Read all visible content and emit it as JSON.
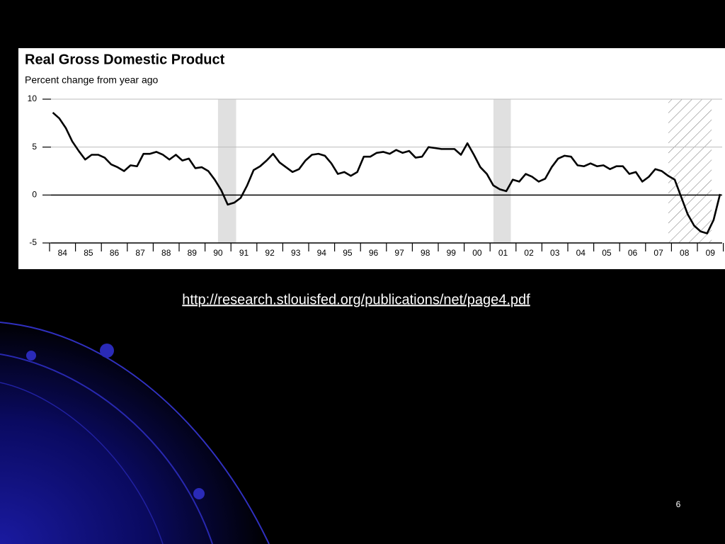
{
  "chart_data": {
    "type": "line",
    "title": "Real Gross Domestic Product",
    "subtitle": "Percent change from year ago",
    "xlim": [
      1984,
      2010
    ],
    "ylim": [
      -5,
      10
    ],
    "yticks": [
      10,
      5,
      0,
      -5
    ],
    "xticks": [
      {
        "value": 1984.5,
        "label": "84"
      },
      {
        "value": 1985.5,
        "label": "85"
      },
      {
        "value": 1986.5,
        "label": "86"
      },
      {
        "value": 1987.5,
        "label": "87"
      },
      {
        "value": 1988.5,
        "label": "88"
      },
      {
        "value": 1989.5,
        "label": "89"
      },
      {
        "value": 1990.5,
        "label": "90"
      },
      {
        "value": 1991.5,
        "label": "91"
      },
      {
        "value": 1992.5,
        "label": "92"
      },
      {
        "value": 1993.5,
        "label": "93"
      },
      {
        "value": 1994.5,
        "label": "94"
      },
      {
        "value": 1995.5,
        "label": "95"
      },
      {
        "value": 1996.5,
        "label": "96"
      },
      {
        "value": 1997.5,
        "label": "97"
      },
      {
        "value": 1998.5,
        "label": "98"
      },
      {
        "value": 1999.5,
        "label": "99"
      },
      {
        "value": 2000.5,
        "label": "00"
      },
      {
        "value": 2001.5,
        "label": "01"
      },
      {
        "value": 2002.5,
        "label": "02"
      },
      {
        "value": 2003.5,
        "label": "03"
      },
      {
        "value": 2004.5,
        "label": "04"
      },
      {
        "value": 2005.5,
        "label": "05"
      },
      {
        "value": 2006.5,
        "label": "06"
      },
      {
        "value": 2007.5,
        "label": "07"
      },
      {
        "value": 2008.5,
        "label": "08"
      },
      {
        "value": 2009.5,
        "label": "09"
      }
    ],
    "grid": true,
    "recessions": [
      {
        "start": 1990.5,
        "end": 1991.2,
        "style": "shaded"
      },
      {
        "start": 2001.13,
        "end": 2001.8,
        "style": "shaded"
      },
      {
        "start": 2007.88,
        "end": 2009.55,
        "style": "hatched"
      }
    ],
    "series": [
      {
        "color": "#000000",
        "x": [
          1984.125,
          1984.375,
          1984.625,
          1984.875,
          1985.125,
          1985.375,
          1985.625,
          1985.875,
          1986.125,
          1986.375,
          1986.625,
          1986.875,
          1987.125,
          1987.375,
          1987.625,
          1987.875,
          1988.125,
          1988.375,
          1988.625,
          1988.875,
          1989.125,
          1989.375,
          1989.625,
          1989.875,
          1990.125,
          1990.375,
          1990.625,
          1990.875,
          1991.125,
          1991.375,
          1991.625,
          1991.875,
          1992.125,
          1992.375,
          1992.625,
          1992.875,
          1993.125,
          1993.375,
          1993.625,
          1993.875,
          1994.125,
          1994.375,
          1994.625,
          1994.875,
          1995.125,
          1995.375,
          1995.625,
          1995.875,
          1996.125,
          1996.375,
          1996.625,
          1996.875,
          1997.125,
          1997.375,
          1997.625,
          1997.875,
          1998.125,
          1998.375,
          1998.625,
          1998.875,
          1999.125,
          1999.375,
          1999.625,
          1999.875,
          2000.125,
          2000.375,
          2000.625,
          2000.875,
          2001.125,
          2001.375,
          2001.625,
          2001.875,
          2002.125,
          2002.375,
          2002.625,
          2002.875,
          2003.125,
          2003.375,
          2003.625,
          2003.875,
          2004.125,
          2004.375,
          2004.625,
          2004.875,
          2005.125,
          2005.375,
          2005.625,
          2005.875,
          2006.125,
          2006.375,
          2006.625,
          2006.875,
          2007.125,
          2007.375,
          2007.625,
          2007.875,
          2008.125,
          2008.375,
          2008.625,
          2008.875,
          2009.125,
          2009.375,
          2009.625,
          2009.875
        ],
        "values": [
          8.6,
          8.0,
          7.0,
          5.6,
          4.6,
          3.7,
          4.2,
          4.2,
          3.9,
          3.2,
          2.9,
          2.5,
          3.1,
          3.0,
          4.3,
          4.3,
          4.5,
          4.2,
          3.7,
          4.2,
          3.6,
          3.8,
          2.8,
          2.9,
          2.5,
          1.6,
          0.5,
          -1.0,
          -0.8,
          -0.3,
          1.0,
          2.6,
          3.0,
          3.6,
          4.3,
          3.4,
          2.9,
          2.4,
          2.7,
          3.6,
          4.2,
          4.3,
          4.1,
          3.3,
          2.2,
          2.4,
          2.0,
          2.4,
          4.0,
          4.0,
          4.4,
          4.5,
          4.3,
          4.7,
          4.4,
          4.6,
          3.9,
          4.0,
          5.0,
          4.9,
          4.8,
          4.8,
          4.8,
          4.2,
          5.4,
          4.2,
          2.9,
          2.2,
          1.0,
          0.6,
          0.4,
          1.6,
          1.4,
          2.2,
          1.9,
          1.4,
          1.7,
          2.9,
          3.8,
          4.1,
          4.0,
          3.1,
          3.0,
          3.3,
          3.0,
          3.1,
          2.7,
          3.0,
          3.0,
          2.2,
          2.4,
          1.4,
          1.9,
          2.7,
          2.5,
          2.0,
          1.6,
          -0.2,
          -2.0,
          -3.2,
          -3.8,
          -4.0,
          -2.6,
          0.1
        ]
      }
    ]
  },
  "footer": {
    "source_url": "http://research.stlouisfed.org/publications/net/page4.pdf",
    "slide_number": "6"
  }
}
